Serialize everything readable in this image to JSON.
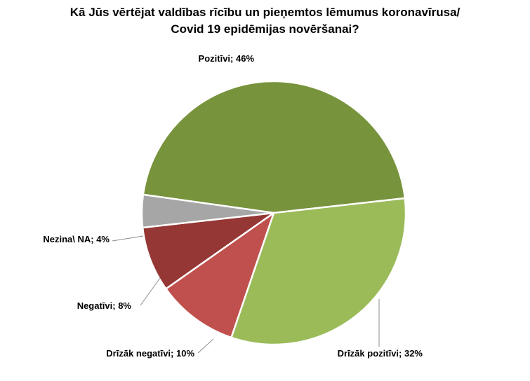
{
  "chart_data": {
    "type": "pie",
    "title_lines": [
      "Kā Jūs vērtējat valdības rīcību un pieņemtos lēmumus koronavīrusa/",
      "Covid 19 epidēmijas novēršanai?"
    ],
    "slices": [
      {
        "label": "Pozitīvi; 46%",
        "category": "Pozitīvi",
        "value": 46,
        "color": "#77933c"
      },
      {
        "label": "Drīzāk pozitīvi; 32%",
        "category": "Drīzāk pozitīvi",
        "value": 32,
        "color": "#9bbb59"
      },
      {
        "label": "Drīzāk negatīvi; 10%",
        "category": "Drīzāk negatīvi",
        "value": 10,
        "color": "#c0504d"
      },
      {
        "label": "Negatīvi; 8%",
        "category": "Negatīvi",
        "value": 8,
        "color": "#953735"
      },
      {
        "label": "Nezina\\ NA; 4%",
        "category": "Nezina\\ NA",
        "value": 4,
        "color": "#a6a6a6"
      }
    ],
    "legend": "none"
  }
}
